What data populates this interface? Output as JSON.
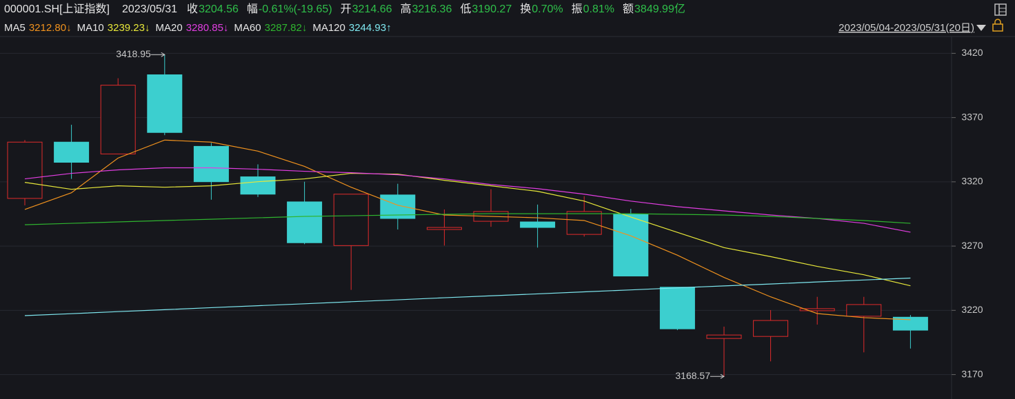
{
  "header": {
    "symbol": "000001.SH[上证指数]",
    "date": "2023/05/31",
    "items": [
      {
        "label": "收",
        "value": "3204.56"
      },
      {
        "label": "幅",
        "value": "-0.61%(-19.65)"
      },
      {
        "label": "开",
        "value": "3214.66"
      },
      {
        "label": "高",
        "value": "3216.36"
      },
      {
        "label": "低",
        "value": "3190.27"
      },
      {
        "label": "换",
        "value": "0.70%"
      },
      {
        "label": "振",
        "value": "0.81%"
      },
      {
        "label": "额",
        "value": "3849.99亿"
      }
    ],
    "range": "2023/05/04-2023/05/31(20日)"
  },
  "chart_data": {
    "type": "candlestick",
    "open": [
      3307.1,
      3350.9,
      3341.7,
      3403.3,
      3347.6,
      3323.9,
      3304.4,
      3270.4,
      3309.8,
      3282.9,
      3289.3,
      3288.8,
      3279.1,
      3294.7,
      3238.0,
      3198.1,
      3199.7,
      3219.7,
      3215.4,
      3214.66
    ],
    "high": [
      3352.5,
      3364.4,
      3400.6,
      3418.95,
      3350.3,
      3333.6,
      3320.1,
      3310.4,
      3318.5,
      3298.5,
      3314.2,
      3302.3,
      3308.8,
      3299.0,
      3238.0,
      3207.3,
      3220.2,
      3230.5,
      3230.5,
      3216.36
    ],
    "low": [
      3301.7,
      3322.3,
      3341.7,
      3356.3,
      3306.1,
      3308.2,
      3271.5,
      3235.9,
      3282.9,
      3270.4,
      3285.0,
      3268.8,
      3277.4,
      3246.7,
      3204.6,
      3168.57,
      3180.3,
      3208.9,
      3187.3,
      3190.27
    ],
    "close": [
      3350.9,
      3335.2,
      3395.2,
      3358.4,
      3320.1,
      3310.4,
      3272.6,
      3310.4,
      3291.5,
      3284.5,
      3296.9,
      3284.5,
      3296.9,
      3246.7,
      3205.6,
      3200.8,
      3212.1,
      3221.3,
      3224.5,
      3204.56
    ],
    "up_color": "#e02b2b",
    "down_color": "#3ccfcf",
    "ylim": [
      3151,
      3432
    ],
    "yticks": [
      3170,
      3220,
      3270,
      3320,
      3370,
      3420
    ],
    "grid": true,
    "high_label": "3418.95",
    "low_label": "3168.57",
    "series": [
      {
        "name": "MA5",
        "color": "#f0921e",
        "value_label": "3212.80↓",
        "values": [
          3298.5,
          3311.5,
          3338.5,
          3352.5,
          3350.9,
          3343.9,
          3332.0,
          3315.8,
          3301.8,
          3294.2,
          3293.1,
          3292.0,
          3289.9,
          3278.0,
          3262.9,
          3245.6,
          3230.5,
          3217.5,
          3214.3,
          3212.7
        ]
      },
      {
        "name": "MA10",
        "color": "#e8e83a",
        "value_label": "3239.23↓",
        "values": [
          3319.6,
          3314.2,
          3316.9,
          3315.8,
          3316.9,
          3320.1,
          3322.3,
          3326.6,
          3326.0,
          3321.2,
          3316.9,
          3312.6,
          3305.0,
          3292.6,
          3280.7,
          3268.8,
          3261.8,
          3254.2,
          3247.7,
          3239.1
        ]
      },
      {
        "name": "MA20",
        "color": "#e13ee1",
        "value_label": "3280.85↓",
        "values": [
          3322.3,
          3326.6,
          3329.3,
          3330.9,
          3330.9,
          3329.8,
          3328.2,
          3327.1,
          3325.5,
          3322.3,
          3317.9,
          3314.7,
          3310.4,
          3305.0,
          3300.7,
          3297.4,
          3294.2,
          3291.5,
          3287.7,
          3280.8
        ]
      },
      {
        "name": "MA60",
        "color": "#2fb52f",
        "value_label": "3287.82↓",
        "values": [
          3286.6,
          3287.7,
          3288.8,
          3289.9,
          3290.9,
          3292.0,
          3293.1,
          3293.6,
          3294.2,
          3294.7,
          3295.2,
          3295.2,
          3295.2,
          3295.2,
          3294.7,
          3294.2,
          3293.1,
          3291.5,
          3289.9,
          3287.7
        ]
      },
      {
        "name": "MA120",
        "color": "#7fe8f0",
        "value_label": "3244.93↑",
        "values": [
          3215.9,
          3217.4,
          3219.0,
          3220.5,
          3222.1,
          3223.6,
          3225.1,
          3226.7,
          3228.2,
          3229.8,
          3231.3,
          3232.8,
          3234.4,
          3235.9,
          3237.5,
          3239.0,
          3240.5,
          3242.1,
          3243.6,
          3245.1
        ]
      }
    ]
  }
}
